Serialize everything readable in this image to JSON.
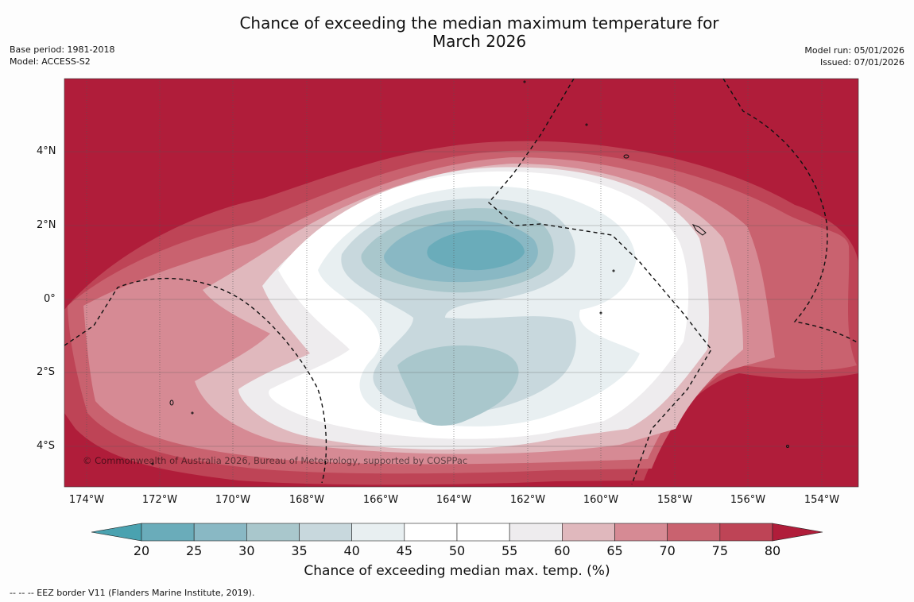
{
  "title_line1": "Chance of exceeding the median maximum temperature for",
  "title_line2": "March 2026",
  "base_period": "Base period: 1981-2018",
  "model": "Model: ACCESS-S2",
  "model_run": "Model run: 05/01/2026",
  "issued": "Issued: 07/01/2026",
  "map": {
    "latitudes": [
      "4°N",
      "2°N",
      "0°",
      "2°S",
      "4°S"
    ],
    "longitudes": [
      "174°W",
      "172°W",
      "170°W",
      "168°W",
      "166°W",
      "164°W",
      "162°W",
      "160°W",
      "158°W",
      "156°W",
      "154°W"
    ],
    "copyright": "© Commonwealth of Australia 2026, Bureau of Meteorology, supported by COSPPac"
  },
  "colorbar": {
    "ticks": [
      "20",
      "25",
      "30",
      "35",
      "40",
      "45",
      "50",
      "55",
      "60",
      "65",
      "70",
      "75",
      "80"
    ],
    "colors": [
      "#6aacba",
      "#89b8c4",
      "#a9c7cc",
      "#c8d8dd",
      "#e8eff1",
      "#ffffff",
      "#ffffff",
      "#eeecee",
      "#e0b8bd",
      "#d68a94",
      "#c9626f",
      "#be4456"
    ],
    "under_color": "#4aa2b0",
    "over_color": "#b01d3a",
    "label": "Chance of exceeding median max. temp. (%)"
  },
  "footnote": "--  --  -- EEZ border V11 (Flanders Marine Institute, 2019)."
}
